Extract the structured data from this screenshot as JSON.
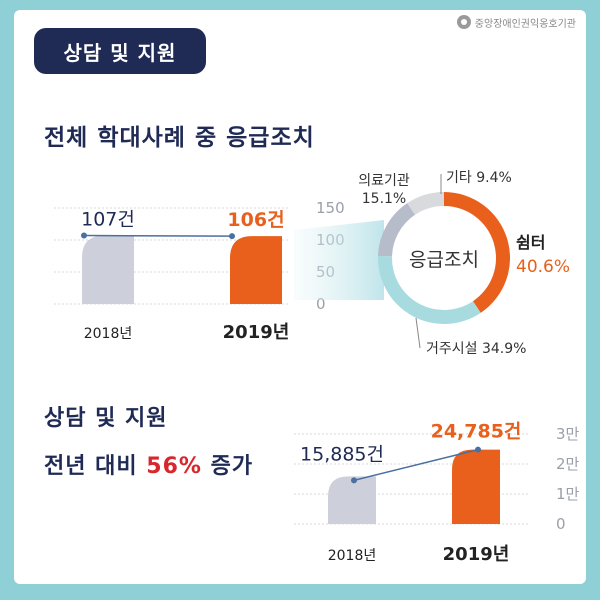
{
  "header": {
    "badge": "상담 및 지원",
    "logo_text": "중앙장애인권익옹호기관"
  },
  "section1": {
    "title": "전체 학대사례 중 응급조치"
  },
  "section2": {
    "title_line1": "상담 및 지원",
    "title_line2_pre": "전년 대비 ",
    "title_line2_hl": "56%",
    "title_line2_post": " 증가"
  },
  "colors": {
    "navy": "#1f2a55",
    "orange": "#e8601c",
    "gray_bar": "#cdd0da",
    "teal": "#a8dbe0",
    "donut_gray": "#b7bcca",
    "donut_light": "#d8dade",
    "line": "#4a6fa0"
  },
  "chart_data": [
    {
      "type": "bar",
      "categories": [
        "2018년",
        "2019년"
      ],
      "values": [
        107,
        106
      ],
      "value_labels": [
        "107건",
        "106건"
      ],
      "yticks": [
        "150",
        "100",
        "50",
        "0"
      ],
      "ylim": [
        0,
        150
      ]
    },
    {
      "type": "pie",
      "center_label": "응급조치",
      "slices": [
        {
          "label": "쉼터",
          "value": 40.6,
          "value_label": "40.6%"
        },
        {
          "label": "거주시설",
          "value": 34.9,
          "value_label": "34.9%"
        },
        {
          "label": "의료기관",
          "value": 15.1,
          "value_label": "15.1%"
        },
        {
          "label": "기타",
          "value": 9.4,
          "value_label": "9.4%"
        }
      ]
    },
    {
      "type": "bar",
      "categories": [
        "2018년",
        "2019년"
      ],
      "values": [
        15885,
        24785
      ],
      "value_labels": [
        "15,885건",
        "24,785건"
      ],
      "yticks": [
        "3만",
        "2만",
        "1만",
        "0"
      ],
      "ylim": [
        0,
        30000
      ]
    }
  ]
}
